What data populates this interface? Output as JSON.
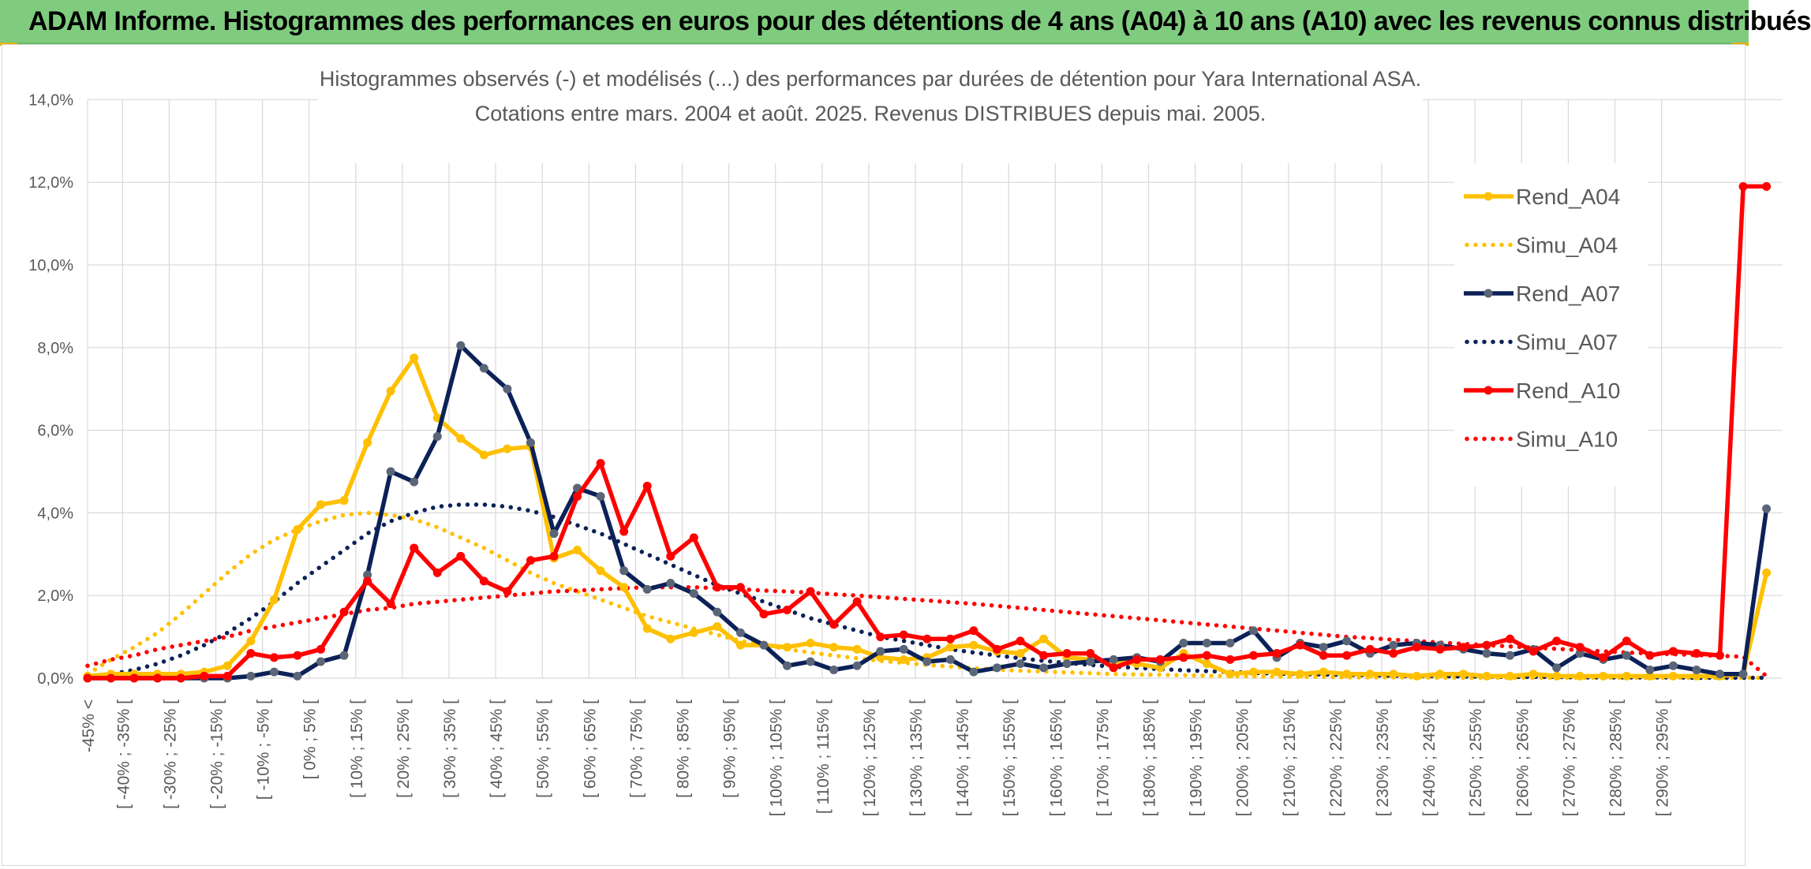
{
  "header": {
    "title": "ADAM Informe. Histogrammes des performances en euros pour des détentions de 4 ans (A04) à 10 ans (A10) avec les revenus connus distribués"
  },
  "colors": {
    "header_bg": "#7fcc7f",
    "A04": "#ffc000",
    "A07": "#0b2157",
    "A07_marker": "#5a6577",
    "A10": "#ff0000",
    "grid": "#d9d9d9",
    "text": "#595959"
  },
  "chart_data": {
    "type": "line",
    "title_line1": "Histogrammes observés (-) et modélisés (...) des performances par durées de détention pour Yara International ASA.",
    "title_line2": "Cotations entre mars. 2004 et août. 2025. Revenus DISTRIBUES depuis mai. 2005.",
    "xlabel": "",
    "ylabel": "",
    "ylim": [
      0,
      14
    ],
    "yticks": [
      "0,0%",
      "2,0%",
      "4,0%",
      "6,0%",
      "8,0%",
      "10,0%",
      "12,0%",
      "14,0%"
    ],
    "grid": true,
    "legend_position": "right",
    "x_tick_labels": [
      "-45% <",
      "[ -40% ; -35% [",
      "[ -30% ; -25% [",
      "[ -20% ; -15% [",
      "[ -10% ; -5% [",
      "[ 0% ; 5% [",
      "[ 10% ; 15% [",
      "[ 20% ; 25% [",
      "[ 30% ; 35% [",
      "[ 40% ; 45% [",
      "[ 50% ; 55% [",
      "[ 60% ; 65% [",
      "[ 70% ; 75% [",
      "[ 80% ; 85% [",
      "[ 90% ; 95% [",
      "[ 100% ; 105% [",
      "[ 110% ; 115% [",
      "[ 120% ; 125% [",
      "[ 130% ; 135% [",
      "[ 140% ; 145% [",
      "[ 150% ; 155% [",
      "[ 160% ; 165% [",
      "[ 170% ; 175% [",
      "[ 180% ; 185% [",
      "[ 190% ; 195% [",
      "[ 200% ; 205% [",
      "[ 210% ; 215% [",
      "[ 220% ; 225% [",
      "[ 230% ; 235% [",
      "[ 240% ; 245% [",
      "[ 250% ; 255% [",
      "[ 260% ; 265% [",
      "[ 270% ; 275% [",
      "[ 280% ; 285% [",
      "[ 290% ; 295% ["
    ],
    "series": [
      {
        "name": "Rend_A04",
        "style": "solid",
        "color": "#ffc000",
        "values": [
          0.05,
          0.1,
          0.1,
          0.1,
          0.1,
          0.15,
          0.3,
          0.9,
          1.9,
          3.6,
          4.2,
          4.3,
          5.7,
          6.95,
          7.75,
          6.3,
          5.8,
          5.4,
          5.55,
          5.6,
          2.9,
          3.1,
          2.6,
          2.2,
          1.2,
          0.95,
          1.1,
          1.25,
          0.8,
          0.8,
          0.75,
          0.85,
          0.75,
          0.7,
          0.5,
          0.45,
          0.5,
          0.75,
          0.8,
          0.65,
          0.6,
          0.95,
          0.5,
          0.45,
          0.4,
          0.35,
          0.25,
          0.6,
          0.35,
          0.1,
          0.15,
          0.15,
          0.1,
          0.15,
          0.1,
          0.1,
          0.1,
          0.05,
          0.1,
          0.1,
          0.05,
          0.05,
          0.1,
          0.05,
          0.05,
          0.05,
          0.05,
          0.05,
          0.05,
          0.05,
          0.05,
          0.1,
          2.55
        ]
      },
      {
        "name": "Simu_A04",
        "style": "dotted",
        "color": "#ffc000",
        "values": [
          0.1,
          0.45,
          0.75,
          1.1,
          1.55,
          2.05,
          2.55,
          3.0,
          3.35,
          3.6,
          3.8,
          3.95,
          4.0,
          3.95,
          3.85,
          3.65,
          3.4,
          3.15,
          2.85,
          2.55,
          2.3,
          2.1,
          1.9,
          1.7,
          1.5,
          1.35,
          1.2,
          1.05,
          0.9,
          0.8,
          0.7,
          0.62,
          0.55,
          0.48,
          0.42,
          0.37,
          0.32,
          0.28,
          0.24,
          0.21,
          0.18,
          0.16,
          0.14,
          0.12,
          0.1,
          0.09,
          0.08,
          0.07,
          0.06,
          0.05,
          0.04,
          0.04,
          0.03,
          0.03,
          0.02,
          0.02,
          0.02,
          0.02,
          0.01,
          0.01,
          0.01,
          0.01,
          0.01,
          0.01,
          0.01,
          0.01,
          0.01,
          0.01,
          0.01,
          0.01,
          0.01,
          0.01,
          0.01
        ]
      },
      {
        "name": "Rend_A07",
        "style": "solid",
        "color": "#0b2157",
        "values": [
          0.0,
          0.0,
          0.0,
          0.0,
          0.0,
          0.0,
          0.0,
          0.05,
          0.15,
          0.05,
          0.4,
          0.55,
          2.5,
          5.0,
          4.75,
          5.85,
          8.05,
          7.5,
          7.0,
          5.7,
          3.5,
          4.6,
          4.4,
          2.6,
          2.15,
          2.3,
          2.05,
          1.6,
          1.1,
          0.8,
          0.3,
          0.4,
          0.2,
          0.3,
          0.65,
          0.7,
          0.4,
          0.45,
          0.15,
          0.25,
          0.35,
          0.25,
          0.35,
          0.4,
          0.45,
          0.5,
          0.4,
          0.85,
          0.85,
          0.85,
          1.15,
          0.5,
          0.85,
          0.75,
          0.9,
          0.6,
          0.8,
          0.85,
          0.8,
          0.7,
          0.6,
          0.55,
          0.7,
          0.25,
          0.6,
          0.45,
          0.55,
          0.2,
          0.3,
          0.2,
          0.1,
          0.1,
          4.1
        ]
      },
      {
        "name": "Simu_A07",
        "style": "dotted",
        "color": "#0b2157",
        "values": [
          0.0,
          0.1,
          0.2,
          0.35,
          0.55,
          0.8,
          1.1,
          1.45,
          1.85,
          2.3,
          2.7,
          3.1,
          3.5,
          3.8,
          4.0,
          4.15,
          4.2,
          4.2,
          4.15,
          4.05,
          3.9,
          3.7,
          3.5,
          3.25,
          3.0,
          2.75,
          2.5,
          2.25,
          2.05,
          1.85,
          1.65,
          1.45,
          1.3,
          1.15,
          1.0,
          0.9,
          0.8,
          0.7,
          0.62,
          0.55,
          0.48,
          0.42,
          0.37,
          0.32,
          0.28,
          0.25,
          0.22,
          0.19,
          0.17,
          0.15,
          0.13,
          0.11,
          0.1,
          0.09,
          0.08,
          0.07,
          0.06,
          0.05,
          0.05,
          0.04,
          0.04,
          0.03,
          0.03,
          0.03,
          0.02,
          0.02,
          0.02,
          0.02,
          0.02,
          0.01,
          0.01,
          0.01,
          0.01
        ]
      },
      {
        "name": "Rend_A10",
        "style": "solid",
        "color": "#ff0000",
        "values": [
          0.0,
          0.0,
          0.0,
          0.0,
          0.0,
          0.05,
          0.05,
          0.6,
          0.5,
          0.55,
          0.7,
          1.6,
          2.35,
          1.8,
          3.15,
          2.55,
          2.95,
          2.35,
          2.1,
          2.85,
          2.95,
          4.4,
          5.2,
          3.55,
          4.65,
          2.95,
          3.4,
          2.2,
          2.2,
          1.55,
          1.65,
          2.1,
          1.3,
          1.85,
          1.0,
          1.05,
          0.95,
          0.95,
          1.15,
          0.7,
          0.9,
          0.55,
          0.6,
          0.6,
          0.25,
          0.45,
          0.45,
          0.5,
          0.55,
          0.45,
          0.55,
          0.6,
          0.8,
          0.55,
          0.55,
          0.7,
          0.6,
          0.75,
          0.7,
          0.75,
          0.8,
          0.95,
          0.65,
          0.9,
          0.75,
          0.5,
          0.9,
          0.55,
          0.65,
          0.6,
          0.55,
          11.9,
          11.9
        ]
      },
      {
        "name": "Simu_A10",
        "style": "dotted",
        "color": "#ff0000",
        "values": [
          0.3,
          0.45,
          0.55,
          0.7,
          0.8,
          0.9,
          1.0,
          1.15,
          1.25,
          1.35,
          1.45,
          1.55,
          1.65,
          1.7,
          1.8,
          1.85,
          1.9,
          1.95,
          2.0,
          2.05,
          2.1,
          2.12,
          2.15,
          2.18,
          2.2,
          2.2,
          2.2,
          2.18,
          2.15,
          2.12,
          2.1,
          2.07,
          2.03,
          2.0,
          1.96,
          1.92,
          1.88,
          1.84,
          1.8,
          1.75,
          1.7,
          1.65,
          1.6,
          1.55,
          1.5,
          1.45,
          1.4,
          1.35,
          1.3,
          1.25,
          1.2,
          1.15,
          1.1,
          1.05,
          1.0,
          0.97,
          0.93,
          0.9,
          0.86,
          0.83,
          0.8,
          0.77,
          0.74,
          0.71,
          0.68,
          0.65,
          0.62,
          0.6,
          0.58,
          0.56,
          0.54,
          0.52,
          0.05
        ]
      }
    ]
  }
}
